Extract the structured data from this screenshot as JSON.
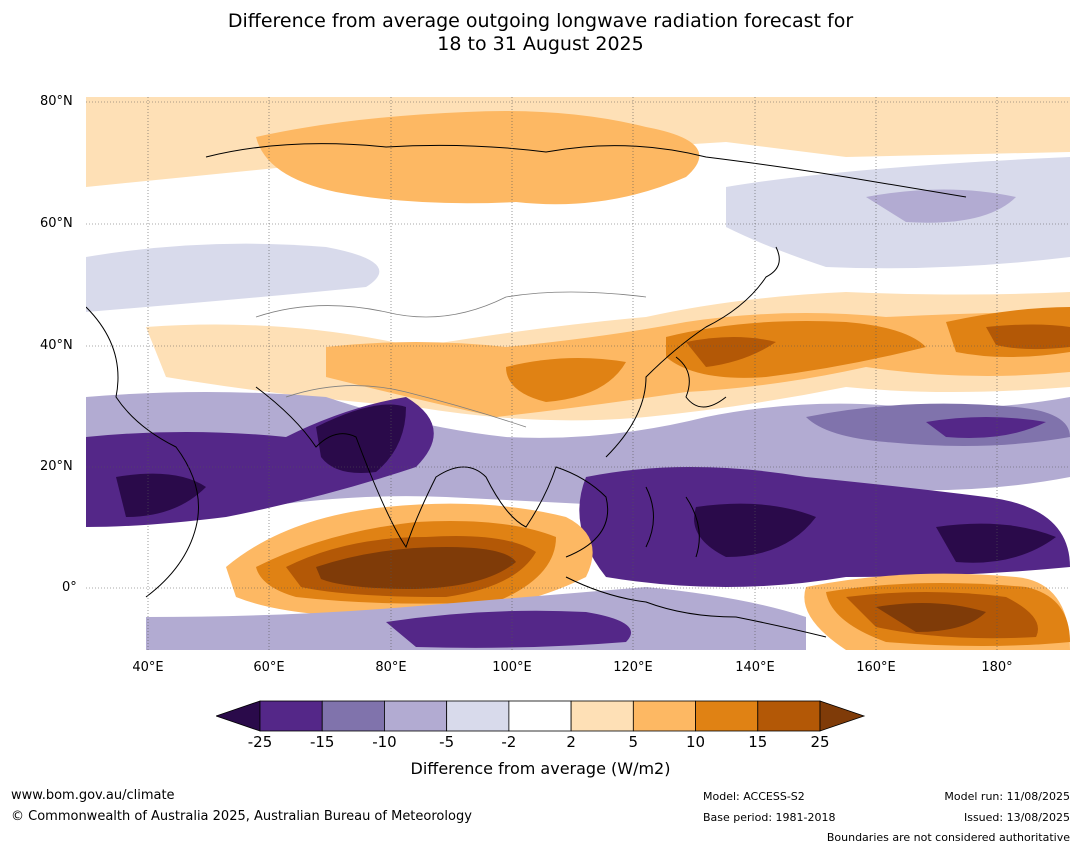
{
  "title_line1": "Difference from average outgoing longwave radiation forecast for",
  "title_line2": "18 to 31 August 2025",
  "lat_labels": [
    "80°N",
    "60°N",
    "40°N",
    "20°N",
    "0°"
  ],
  "lon_labels": [
    "40°E",
    "60°E",
    "80°E",
    "100°E",
    "120°E",
    "140°E",
    "160°E",
    "180°"
  ],
  "colorbar": {
    "ticks": [
      "-25",
      "-15",
      "-10",
      "-5",
      "-2",
      "2",
      "5",
      "10",
      "15",
      "25"
    ],
    "colors": [
      "#2a0a4a",
      "#542788",
      "#8073ac",
      "#b2abd2",
      "#d8daeb",
      "#ffffff",
      "#fee0b6",
      "#fdb863",
      "#e08214",
      "#b35806",
      "#7f3b08"
    ],
    "label": "Difference from average (W/m2)"
  },
  "footer": {
    "url": "www.bom.gov.au/climate",
    "copyright": "© Commonwealth of Australia 2025, Australian Bureau of Meteorology",
    "model": "Model: ACCESS-S2",
    "base_period": "Base period: 1981-2018",
    "model_run": "Model run: 11/08/2025",
    "issued": "Issued: 13/08/2025",
    "disclaimer": "Boundaries are not considered authoritative"
  }
}
